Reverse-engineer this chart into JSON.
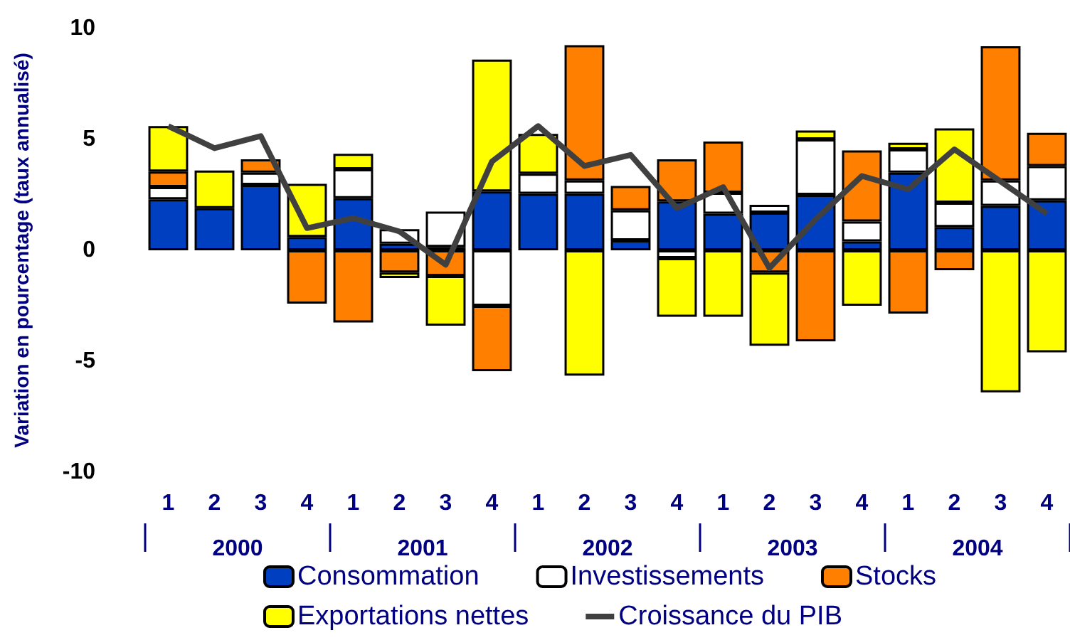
{
  "chart_data": {
    "type": "bar",
    "stacked": true,
    "ylabel": "Variation en pourcentage (taux annualisé)",
    "categories": [
      "1",
      "2",
      "3",
      "4",
      "1",
      "2",
      "3",
      "4",
      "1",
      "2",
      "3",
      "4",
      "1",
      "2",
      "3",
      "4",
      "1",
      "2",
      "3",
      "4"
    ],
    "annotations": [
      "2000",
      "2001",
      "2002",
      "2003",
      "2004"
    ],
    "ylim": [
      -10,
      10
    ],
    "yticks": [
      -10,
      -5,
      0,
      5,
      10
    ],
    "grid": false,
    "legend": "bottom",
    "marker": "none",
    "series": [
      {
        "name": "Consommation",
        "color": "#0040c0",
        "values": [
          2.3,
          1.9,
          2.95,
          0.6,
          2.35,
          0.3,
          0.15,
          2.65,
          2.55,
          2.55,
          0.45,
          2.2,
          1.65,
          1.7,
          2.5,
          0.4,
          3.5,
          1.05,
          2.0,
          2.25
        ]
      },
      {
        "name": "Investissements",
        "color": "#ffffff",
        "values": [
          0.55,
          null,
          0.55,
          null,
          1.3,
          0.65,
          1.6,
          -2.5,
          0.9,
          0.6,
          1.35,
          -0.35,
          0.95,
          0.35,
          2.5,
          0.9,
          1.05,
          1.1,
          1.15,
          1.55
        ]
      },
      {
        "name": "Stocks",
        "color": "#ff8000",
        "values": [
          0.7,
          null,
          0.6,
          -2.4,
          -3.25,
          -1.0,
          -1.15,
          -2.95,
          null,
          6.1,
          1.1,
          1.9,
          2.3,
          -1.0,
          -4.1,
          3.2,
          -2.85,
          -0.9,
          6.05,
          1.5
        ]
      },
      {
        "name": "Exportations nettes",
        "color": "#ffff00",
        "values": [
          2.05,
          1.7,
          null,
          2.4,
          0.7,
          -0.25,
          -2.25,
          5.95,
          1.8,
          -5.65,
          null,
          -2.65,
          -3.0,
          -3.3,
          0.4,
          -2.5,
          0.3,
          3.35,
          -6.4,
          -4.6
        ]
      },
      {
        "name": "Croissance du PIB",
        "type": "line",
        "color": "#404040",
        "values": [
          5.6,
          4.6,
          5.15,
          1.0,
          1.45,
          0.85,
          -0.65,
          4.0,
          5.6,
          3.8,
          4.3,
          1.9,
          2.85,
          -0.8,
          1.4,
          3.35,
          2.75,
          4.55,
          3.1,
          1.65
        ]
      }
    ]
  }
}
